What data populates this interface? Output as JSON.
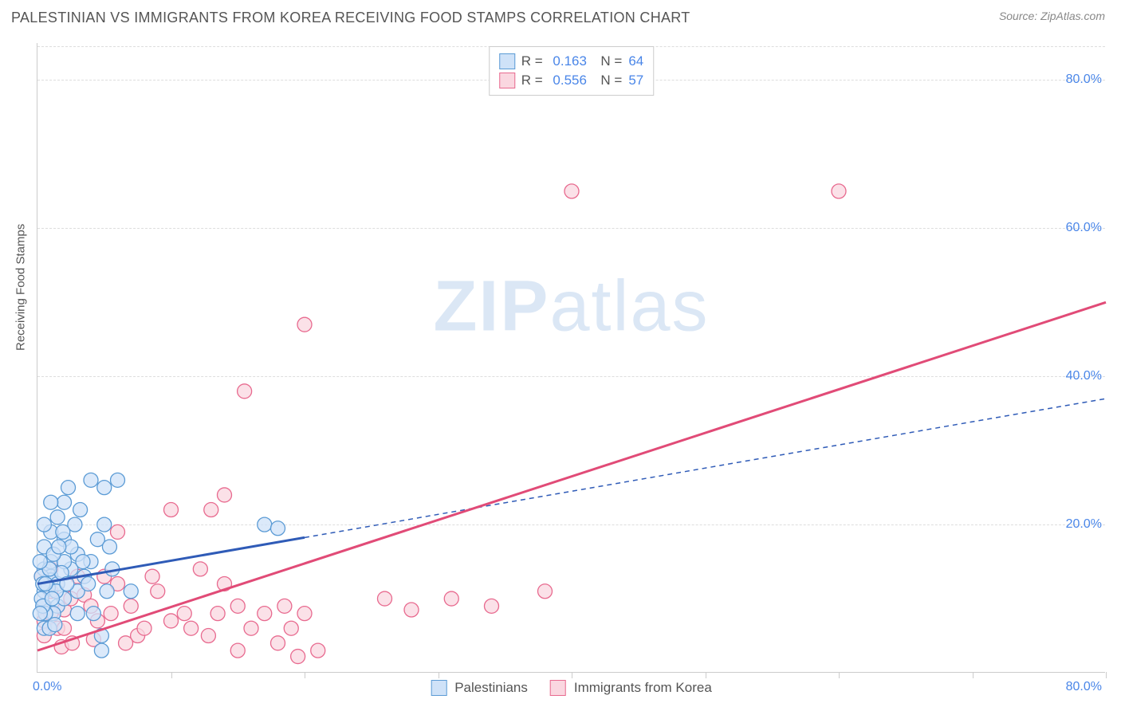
{
  "header": {
    "title": "PALESTINIAN VS IMMIGRANTS FROM KOREA RECEIVING FOOD STAMPS CORRELATION CHART",
    "source": "Source: ZipAtlas.com"
  },
  "chart": {
    "type": "scatter",
    "y_axis_title": "Receiving Food Stamps",
    "xlim": [
      0,
      80
    ],
    "ylim": [
      0,
      85
    ],
    "y_ticks": [
      20,
      40,
      60,
      80
    ],
    "y_tick_labels": [
      "20.0%",
      "40.0%",
      "60.0%",
      "80.0%"
    ],
    "x_origin_label": "0.0%",
    "x_end_label": "80.0%",
    "x_tick_positions": [
      10,
      20,
      30,
      40,
      50,
      60,
      70,
      80
    ],
    "background_color": "#ffffff",
    "grid_color": "#dddddd",
    "axis_color": "#cccccc",
    "marker_radius": 9,
    "marker_stroke_width": 1.3,
    "watermark": {
      "text_bold": "ZIP",
      "text_rest": "atlas",
      "color": "#dbe7f5"
    },
    "series": [
      {
        "name": "Palestinians",
        "fill": "#cfe2f8",
        "stroke": "#5b9bd5",
        "line_color": "#2f5bb7",
        "line_width": 3,
        "line_dash": null,
        "ext_dash": "6,5",
        "line_x_range": [
          0,
          20
        ],
        "ext_x_range": [
          20,
          80
        ],
        "trend_y_at_x0": 12,
        "trend_y_at_x80": 37,
        "R": "0.163",
        "N": "64",
        "points": [
          [
            0.5,
            14
          ],
          [
            0.5,
            11
          ],
          [
            1,
            13
          ],
          [
            0.5,
            9
          ],
          [
            1,
            12.5
          ],
          [
            0.5,
            6
          ],
          [
            1,
            15
          ],
          [
            0.5,
            17
          ],
          [
            1.5,
            12
          ],
          [
            2,
            18
          ],
          [
            3,
            11
          ],
          [
            2.5,
            14
          ],
          [
            1.5,
            9
          ],
          [
            2,
            10
          ],
          [
            3,
            16
          ],
          [
            1,
            19
          ],
          [
            3.5,
            13
          ],
          [
            4,
            15
          ],
          [
            2,
            23
          ],
          [
            4,
            26
          ],
          [
            5,
            25
          ],
          [
            6,
            26
          ],
          [
            7,
            11
          ],
          [
            4.5,
            18
          ],
          [
            0.5,
            20
          ],
          [
            1,
            23
          ],
          [
            1.5,
            21
          ],
          [
            2.5,
            17
          ],
          [
            3,
            8
          ],
          [
            5,
            20
          ],
          [
            2,
            15
          ],
          [
            1.2,
            8
          ],
          [
            0.8,
            11.5
          ],
          [
            1.8,
            13.5
          ],
          [
            0.3,
            13
          ],
          [
            0.3,
            10
          ],
          [
            0.6,
            8
          ],
          [
            1.2,
            16
          ],
          [
            0.4,
            12
          ],
          [
            0.9,
            14
          ],
          [
            0.2,
            15
          ],
          [
            1.4,
            11
          ],
          [
            2.2,
            12
          ],
          [
            2.8,
            20
          ],
          [
            3.4,
            15
          ],
          [
            1.6,
            17
          ],
          [
            0.6,
            12
          ],
          [
            0.4,
            9
          ],
          [
            1.1,
            10
          ],
          [
            1.9,
            19
          ],
          [
            17,
            20
          ],
          [
            18,
            19.5
          ],
          [
            4.8,
            5
          ],
          [
            4.8,
            3
          ],
          [
            3.2,
            22
          ],
          [
            5.6,
            14
          ],
          [
            2.3,
            25
          ],
          [
            0.2,
            8
          ],
          [
            0.9,
            6
          ],
          [
            1.3,
            6.5
          ],
          [
            3.8,
            12
          ],
          [
            4.2,
            8
          ],
          [
            5.2,
            11
          ],
          [
            5.4,
            17
          ]
        ]
      },
      {
        "name": "Immigrants from Korea",
        "fill": "#fad7e0",
        "stroke": "#e86a8f",
        "line_color": "#e14b77",
        "line_width": 3,
        "line_dash": null,
        "ext_dash": null,
        "line_x_range": [
          0,
          80
        ],
        "ext_x_range": null,
        "trend_y_at_x0": 3,
        "trend_y_at_x80": 50,
        "R": "0.556",
        "N": "57",
        "points": [
          [
            0.5,
            9
          ],
          [
            0.5,
            7
          ],
          [
            1,
            8
          ],
          [
            0.3,
            13
          ],
          [
            1,
            11
          ],
          [
            1.5,
            6
          ],
          [
            0.5,
            5
          ],
          [
            1,
            14
          ],
          [
            2,
            8.5
          ],
          [
            2.5,
            10
          ],
          [
            2,
            6
          ],
          [
            3,
            13
          ],
          [
            3.5,
            10.5
          ],
          [
            4,
            9
          ],
          [
            4.5,
            7
          ],
          [
            5,
            13
          ],
          [
            5.5,
            8
          ],
          [
            6,
            12
          ],
          [
            6,
            19
          ],
          [
            7,
            9
          ],
          [
            7.5,
            5
          ],
          [
            8,
            6
          ],
          [
            9,
            11
          ],
          [
            10,
            7
          ],
          [
            10,
            22
          ],
          [
            11,
            8
          ],
          [
            11.5,
            6
          ],
          [
            13,
            22
          ],
          [
            13.5,
            8
          ],
          [
            14,
            12
          ],
          [
            14,
            24
          ],
          [
            15,
            3
          ],
          [
            15,
            9
          ],
          [
            15.5,
            38
          ],
          [
            16,
            6
          ],
          [
            17,
            8
          ],
          [
            18,
            4
          ],
          [
            18.5,
            9
          ],
          [
            19,
            6
          ],
          [
            19.5,
            2.2
          ],
          [
            20,
            8
          ],
          [
            21,
            3
          ],
          [
            26,
            10
          ],
          [
            28,
            8.5
          ],
          [
            31,
            10
          ],
          [
            34,
            9
          ],
          [
            38,
            11
          ],
          [
            20,
            47
          ],
          [
            40,
            65
          ],
          [
            60,
            65
          ],
          [
            1.8,
            3.5
          ],
          [
            2.6,
            4
          ],
          [
            4.2,
            4.5
          ],
          [
            6.6,
            4
          ],
          [
            8.6,
            13
          ],
          [
            12.2,
            14
          ],
          [
            12.8,
            5
          ]
        ]
      }
    ]
  }
}
